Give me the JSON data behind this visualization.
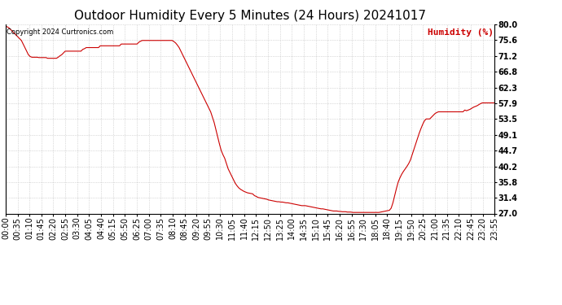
{
  "title": "Outdoor Humidity Every 5 Minutes (24 Hours) 20241017",
  "ylabel": "Humidity (%)",
  "copyright": "Copyright 2024 Curtronics.com",
  "line_color": "#cc0000",
  "ylabel_color": "#cc0000",
  "copyright_color": "#000000",
  "background_color": "#ffffff",
  "grid_color": "#bbbbbb",
  "ylim": [
    27.0,
    80.0
  ],
  "yticks": [
    27.0,
    31.4,
    35.8,
    40.2,
    44.7,
    49.1,
    53.5,
    57.9,
    62.3,
    66.8,
    71.2,
    75.6,
    80.0
  ],
  "title_fontsize": 11,
  "axis_fontsize": 7,
  "humidity_data": [
    79.5,
    79.3,
    79.0,
    78.5,
    78.0,
    77.5,
    77.0,
    76.5,
    76.0,
    75.5,
    74.5,
    73.5,
    72.5,
    71.5,
    71.0,
    70.8,
    70.8,
    70.8,
    70.8,
    70.7,
    70.7,
    70.7,
    70.7,
    70.7,
    70.5,
    70.5,
    70.5,
    70.5,
    70.5,
    70.5,
    70.8,
    71.2,
    71.5,
    72.0,
    72.5,
    72.5,
    72.5,
    72.5,
    72.5,
    72.5,
    72.5,
    72.5,
    72.5,
    72.5,
    73.0,
    73.2,
    73.5,
    73.5,
    73.5,
    73.5,
    73.5,
    73.5,
    73.5,
    73.5,
    74.0,
    74.0,
    74.0,
    74.0,
    74.0,
    74.0,
    74.0,
    74.0,
    74.0,
    74.0,
    74.0,
    74.0,
    74.5,
    74.5,
    74.5,
    74.5,
    74.5,
    74.5,
    74.5,
    74.5,
    74.5,
    74.5,
    75.0,
    75.3,
    75.5,
    75.5,
    75.5,
    75.5,
    75.5,
    75.5,
    75.5,
    75.5,
    75.5,
    75.5,
    75.5,
    75.5,
    75.5,
    75.5,
    75.5,
    75.5,
    75.5,
    75.5,
    75.2,
    74.8,
    74.2,
    73.5,
    72.5,
    71.5,
    70.5,
    69.5,
    68.5,
    67.5,
    66.5,
    65.5,
    64.5,
    63.5,
    62.5,
    61.5,
    60.5,
    59.5,
    58.5,
    57.5,
    56.5,
    55.5,
    54.0,
    52.5,
    50.5,
    48.5,
    46.5,
    44.7,
    43.5,
    42.5,
    41.0,
    39.5,
    38.5,
    37.5,
    36.5,
    35.5,
    34.8,
    34.2,
    33.8,
    33.5,
    33.2,
    33.0,
    32.8,
    32.7,
    32.6,
    32.5,
    32.0,
    31.8,
    31.5,
    31.4,
    31.3,
    31.2,
    31.1,
    31.0,
    30.8,
    30.7,
    30.6,
    30.5,
    30.4,
    30.3,
    30.3,
    30.2,
    30.2,
    30.1,
    30.0,
    30.0,
    29.9,
    29.8,
    29.7,
    29.6,
    29.5,
    29.4,
    29.3,
    29.2,
    29.2,
    29.2,
    29.1,
    29.0,
    28.9,
    28.8,
    28.7,
    28.6,
    28.5,
    28.4,
    28.3,
    28.3,
    28.2,
    28.1,
    28.0,
    27.9,
    27.8,
    27.7,
    27.7,
    27.7,
    27.6,
    27.6,
    27.5,
    27.5,
    27.5,
    27.4,
    27.4,
    27.4,
    27.3,
    27.3,
    27.3,
    27.3,
    27.3,
    27.3,
    27.3,
    27.3,
    27.3,
    27.3,
    27.3,
    27.3,
    27.3,
    27.3,
    27.3,
    27.3,
    27.4,
    27.5,
    27.6,
    27.7,
    27.8,
    27.9,
    28.5,
    30.0,
    32.0,
    34.0,
    35.8,
    37.0,
    38.0,
    38.8,
    39.5,
    40.2,
    41.0,
    42.0,
    43.5,
    45.0,
    46.5,
    48.0,
    49.5,
    50.8,
    52.0,
    53.0,
    53.5,
    53.5,
    53.5,
    54.0,
    54.5,
    55.0,
    55.3,
    55.5,
    55.5,
    55.5,
    55.5,
    55.5,
    55.5,
    55.5,
    55.5,
    55.5,
    55.5,
    55.5,
    55.5,
    55.5,
    55.5,
    55.5,
    56.0,
    55.8,
    56.0,
    56.2,
    56.5,
    56.8,
    57.0,
    57.2,
    57.5,
    57.8,
    58.0,
    58.0,
    58.0,
    58.0,
    58.0,
    58.0,
    58.0,
    58.0
  ],
  "x_tick_labels": [
    "00:00",
    "00:35",
    "01:10",
    "01:45",
    "02:20",
    "02:55",
    "03:30",
    "04:05",
    "04:40",
    "05:15",
    "05:50",
    "06:25",
    "07:00",
    "07:35",
    "08:10",
    "08:45",
    "09:20",
    "09:55",
    "10:30",
    "11:05",
    "11:40",
    "12:15",
    "12:50",
    "13:25",
    "14:00",
    "14:35",
    "15:10",
    "15:45",
    "16:20",
    "16:55",
    "17:30",
    "18:05",
    "18:40",
    "19:15",
    "19:50",
    "20:25",
    "21:00",
    "21:35",
    "22:10",
    "22:45",
    "23:20",
    "23:55"
  ]
}
